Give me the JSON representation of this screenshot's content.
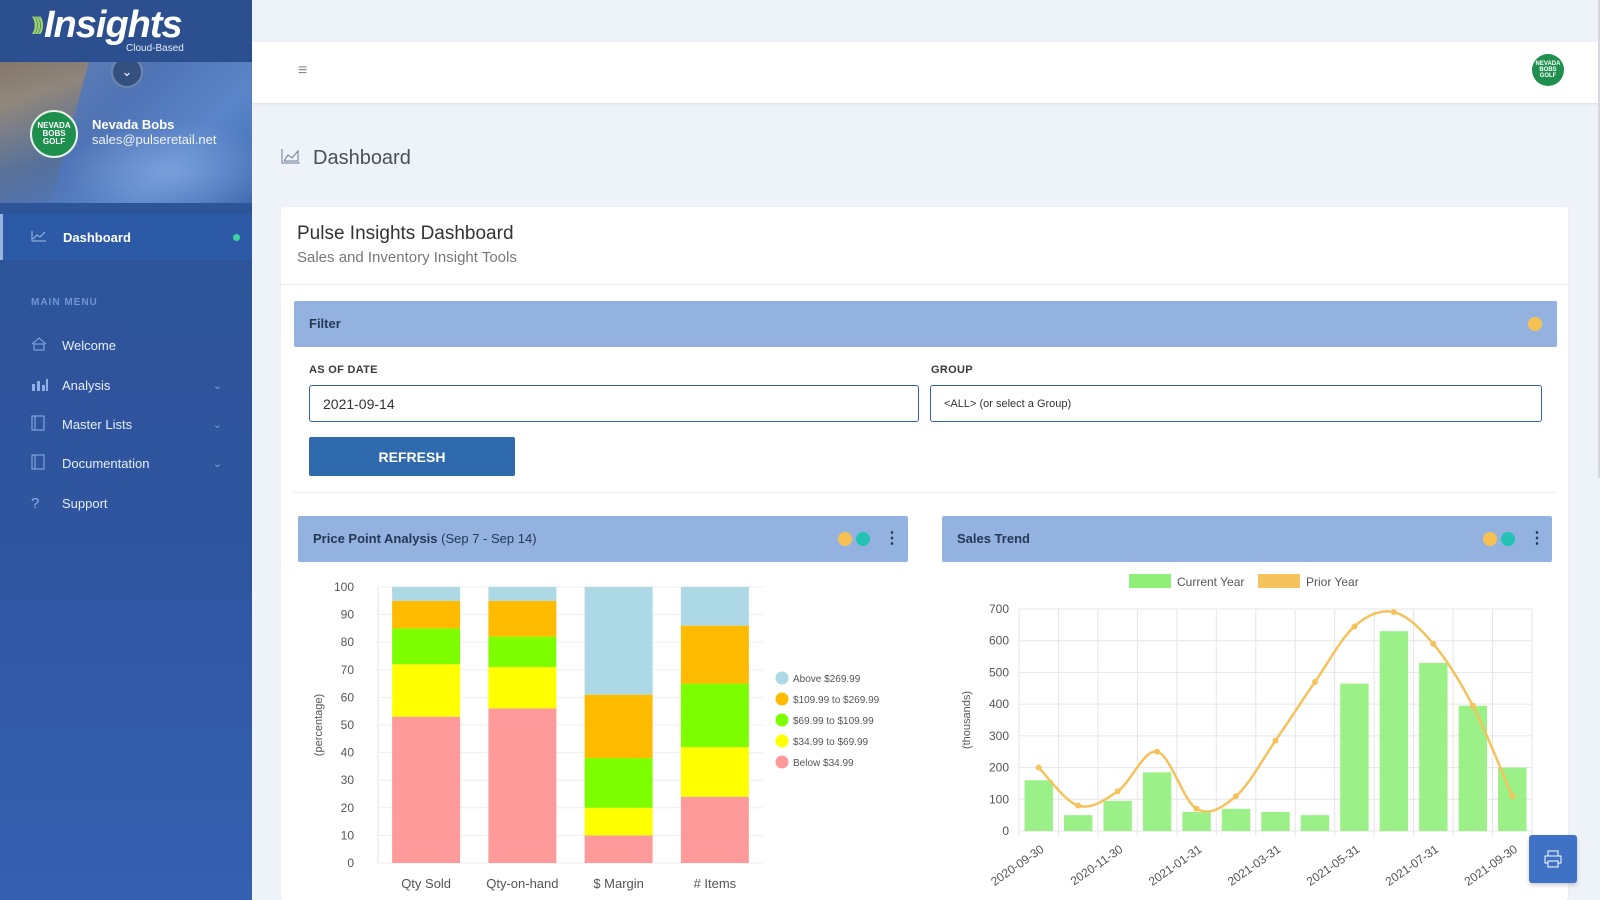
{
  "brand": {
    "name": "Insights",
    "tagline": "Cloud-Based"
  },
  "user": {
    "name": "Nevada Bobs",
    "email": "sales@pulseretail.net",
    "avatar_text": "NEVADA BOBS GOLF"
  },
  "nav": {
    "active": {
      "label": "Dashboard",
      "icon": "line-chart-icon"
    },
    "section_label": "MAIN MENU",
    "items": [
      {
        "label": "Welcome",
        "icon": "home-icon",
        "has_submenu": false
      },
      {
        "label": "Analysis",
        "icon": "bar-chart-icon",
        "has_submenu": true
      },
      {
        "label": "Master Lists",
        "icon": "book-icon",
        "has_submenu": true
      },
      {
        "label": "Documentation",
        "icon": "book-icon",
        "has_submenu": true
      },
      {
        "label": "Support",
        "icon": "question-icon",
        "has_submenu": false
      }
    ]
  },
  "page": {
    "title": "Dashboard"
  },
  "card": {
    "title": "Pulse Insights Dashboard",
    "subtitle": "Sales and Inventory Insight Tools"
  },
  "filter": {
    "title": "Filter",
    "as_of_label": "AS OF DATE",
    "as_of_value": "2021-09-14",
    "group_label": "GROUP",
    "group_value": "<ALL> (or select a Group)",
    "refresh_label": "REFRESH"
  },
  "colors": {
    "header_blue": "#94b2e0",
    "accent_yellow": "#f6c152",
    "accent_teal": "#23c2b2",
    "button_blue": "#2f69ae"
  },
  "price_chart_header": {
    "title": "Price Point Analysis",
    "range": "(Sep 7 - Sep 14)"
  },
  "sales_chart_header": {
    "title": "Sales Trend"
  },
  "chart_data": [
    {
      "type": "bar",
      "stacked": true,
      "ylabel": "(percentage)",
      "ylim": [
        0,
        100
      ],
      "yticks": [
        0,
        10,
        20,
        30,
        40,
        50,
        60,
        70,
        80,
        90,
        100
      ],
      "categories": [
        "Qty Sold",
        "Qty-on-hand",
        "$ Margin",
        "# Items"
      ],
      "series": [
        {
          "name": "Below $34.99",
          "color": "#ff9a9a",
          "values": [
            53,
            56,
            10,
            24
          ]
        },
        {
          "name": "$34.99 to $69.99",
          "color": "#ffff00",
          "values": [
            19,
            15,
            10,
            18
          ]
        },
        {
          "name": "$69.99 to $109.99",
          "color": "#7dff00",
          "values": [
            13,
            11,
            18,
            23
          ]
        },
        {
          "name": "$109.99 to $269.99",
          "color": "#ffbb00",
          "values": [
            10,
            13,
            23,
            21
          ]
        },
        {
          "name": "Above $269.99",
          "color": "#add8e6",
          "values": [
            5,
            5,
            39,
            14
          ]
        }
      ],
      "legend_order": [
        "Above $269.99",
        "$109.99 to $269.99",
        "$69.99 to $109.99",
        "$34.99 to $69.99",
        "Below $34.99"
      ],
      "legend_position": "right"
    },
    {
      "type": "bar",
      "ylabel": "(thousands)",
      "ylim": [
        0,
        700
      ],
      "yticks": [
        0,
        100,
        200,
        300,
        400,
        500,
        600,
        700
      ],
      "x": [
        "2020-09-30",
        "2020-10-31",
        "2020-11-30",
        "2020-12-31",
        "2021-01-31",
        "2021-02-28",
        "2021-03-31",
        "2021-04-30",
        "2021-05-31",
        "2021-06-30",
        "2021-07-31",
        "2021-08-31",
        "2021-09-30"
      ],
      "x_tick_labels": [
        "2020-09-30",
        "",
        "2020-11-30",
        "",
        "2021-01-31",
        "",
        "2021-03-31",
        "",
        "2021-05-31",
        "",
        "2021-07-31",
        "",
        "2021-09-30"
      ],
      "series": [
        {
          "name": "Current Year",
          "kind": "bar",
          "color": "#90f07a",
          "values": [
            160,
            50,
            95,
            185,
            60,
            70,
            60,
            50,
            465,
            630,
            530,
            395,
            200
          ]
        },
        {
          "name": "Prior Year",
          "kind": "line",
          "color": "#f5c25b",
          "values": [
            200,
            80,
            125,
            250,
            70,
            110,
            285,
            470,
            645,
            690,
            590,
            395,
            110
          ]
        }
      ],
      "legend_position": "top",
      "grid": true
    }
  ]
}
